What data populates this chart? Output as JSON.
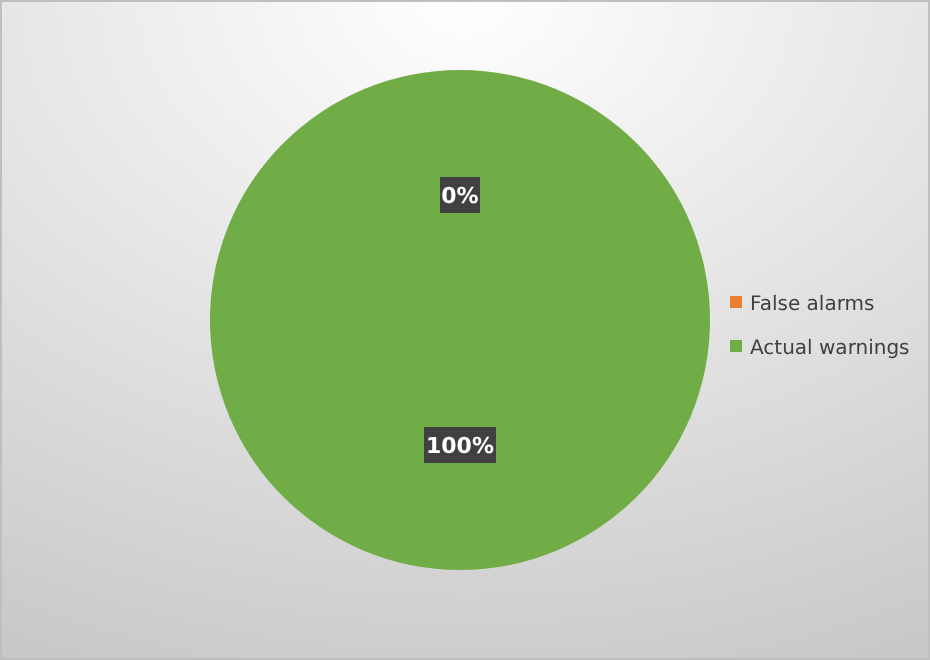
{
  "chart_data": {
    "type": "pie",
    "categories": [
      "False alarms",
      "Actual warnings"
    ],
    "values": [
      0,
      100
    ],
    "colors": [
      "#ed7d31",
      "#70ad47"
    ],
    "value_labels": [
      "0%",
      "100%"
    ],
    "legend": "right"
  }
}
